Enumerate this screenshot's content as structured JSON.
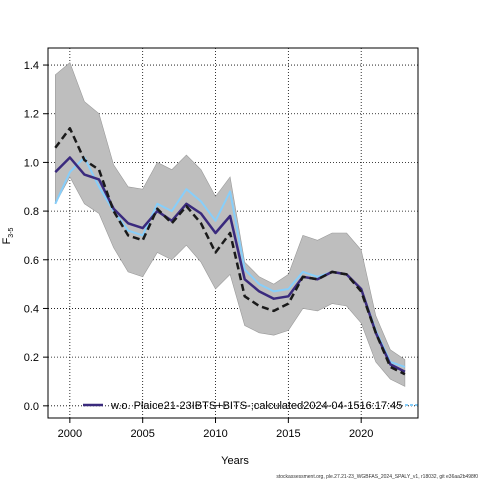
{
  "chart_data": {
    "type": "line",
    "xlabel": "Years",
    "ylabel": "F",
    "ylabel_subscript": "3-5",
    "xlim": [
      1998.5,
      2023.9
    ],
    "ylim": [
      -0.05,
      1.47
    ],
    "xticks": [
      2000,
      2005,
      2010,
      2015,
      2020
    ],
    "yticks": [
      0.0,
      0.2,
      0.4,
      0.6,
      0.8,
      1.0,
      1.2,
      1.4
    ],
    "grid": true,
    "legend": "bottom",
    "legend_label": "w.o. Plaice21-23IBTS+BITS-;calculated2024-04-1516:17:45",
    "footer": "stockassessment.org, ple.27.21-23_WGBFAS_2024_SPALY_v1, r18032, git e36aa2b498f0",
    "colors": {
      "band": "#bebebe",
      "band_edge": "#9a9a9a",
      "estimate": "#3a2a7d",
      "alternative": "#87cefa",
      "retro": "#1a1a1a"
    },
    "x": [
      1999,
      2000,
      2001,
      2002,
      2003,
      2004,
      2005,
      2006,
      2007,
      2008,
      2009,
      2010,
      2011,
      2012,
      2013,
      2014,
      2015,
      2016,
      2017,
      2018,
      2019,
      2020,
      2021,
      2022,
      2023
    ],
    "series": [
      {
        "role": "band",
        "upper": [
          1.36,
          1.41,
          1.25,
          1.2,
          0.99,
          0.9,
          0.89,
          1.0,
          0.97,
          1.03,
          0.97,
          0.86,
          0.94,
          0.59,
          0.53,
          0.5,
          0.54,
          0.7,
          0.68,
          0.71,
          0.71,
          0.64,
          0.37,
          0.23,
          0.19
        ],
        "lower": [
          0.83,
          0.94,
          0.83,
          0.79,
          0.65,
          0.55,
          0.53,
          0.63,
          0.6,
          0.66,
          0.59,
          0.48,
          0.54,
          0.33,
          0.3,
          0.29,
          0.31,
          0.4,
          0.39,
          0.42,
          0.41,
          0.34,
          0.18,
          0.11,
          0.08
        ]
      },
      {
        "role": "estimate",
        "values": [
          0.96,
          1.02,
          0.95,
          0.93,
          0.81,
          0.75,
          0.73,
          0.8,
          0.76,
          0.83,
          0.79,
          0.71,
          0.78,
          0.52,
          0.47,
          0.44,
          0.45,
          0.53,
          0.52,
          0.55,
          0.54,
          0.48,
          0.3,
          0.17,
          0.14
        ]
      },
      {
        "role": "alternative",
        "values": [
          0.83,
          0.96,
          1.02,
          0.9,
          0.8,
          0.72,
          0.7,
          0.83,
          0.8,
          0.89,
          0.84,
          0.76,
          0.88,
          0.56,
          0.5,
          0.47,
          0.48,
          0.55,
          0.53,
          0.55,
          0.54,
          0.48,
          0.31,
          0.18,
          0.16
        ]
      },
      {
        "role": "retro",
        "values": [
          1.06,
          1.14,
          1.01,
          0.97,
          0.8,
          0.7,
          0.68,
          0.81,
          0.75,
          0.82,
          0.75,
          0.63,
          0.71,
          0.45,
          0.41,
          0.39,
          0.42,
          0.53,
          0.52,
          0.55,
          0.54,
          0.47,
          0.3,
          0.16,
          0.13
        ]
      }
    ]
  }
}
